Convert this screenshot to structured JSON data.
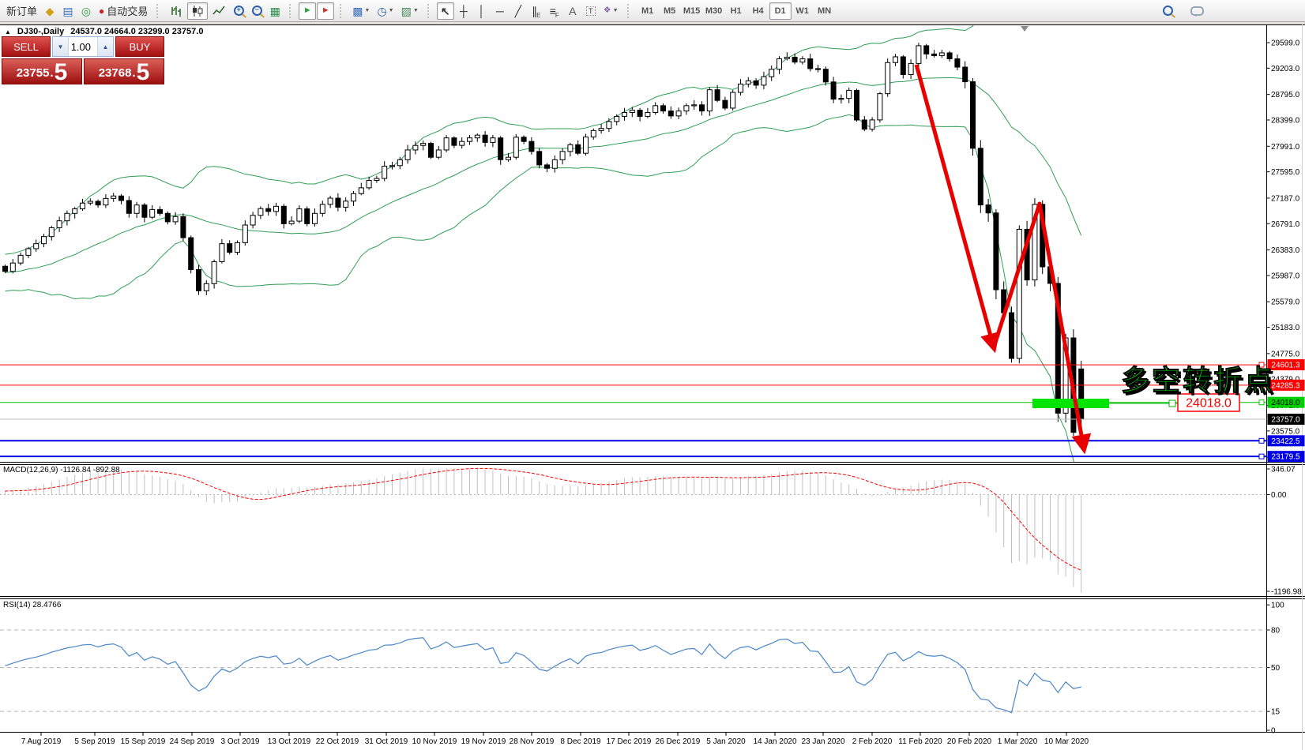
{
  "toolbar": {
    "new_order": "新订单",
    "auto_trading": "自动交易",
    "timeframes": [
      "M1",
      "M5",
      "M15",
      "M30",
      "H1",
      "H4",
      "D1",
      "W1",
      "MN"
    ],
    "active_timeframe": "D1"
  },
  "one_click": {
    "sell_label": "SELL",
    "buy_label": "BUY",
    "volume": "1.00",
    "sell_price": {
      "main": "23755",
      "dot": ".",
      "big": "5"
    },
    "buy_price": {
      "main": "23768",
      "dot": ".",
      "big": "5"
    }
  },
  "chart_header": {
    "symbol_period": "DJ30-,Daily",
    "ohlc_text": "24537.0 24664.0 23299.0 23757.0",
    "shift_marker": "triangle"
  },
  "indicator_labels": {
    "macd": {
      "name": "MACD(12,26,9)",
      "main_value": "-1126.84",
      "signal_value": "-892.88"
    },
    "rsi": {
      "name": "RSI(14)",
      "value": "28.4766"
    }
  },
  "annotations": {
    "turning_point_text": "多空转折点",
    "turning_point_color": "#00dd00",
    "price_callout": "24018.0",
    "callout_color": "#ff0000",
    "highlight_bar_color": "#00e400",
    "arrow_color": "#e60000"
  },
  "chart_data": {
    "type": "candlestick",
    "symbol": "DJ30-",
    "timeframe": "Daily",
    "last_candle_ohlc": {
      "open": 24537.0,
      "high": 24664.0,
      "low": 23299.0,
      "close": 23757.0
    },
    "closes": [
      26050,
      26180,
      26300,
      26403,
      26480,
      26590,
      26728,
      26835,
      26950,
      27020,
      27110,
      27137,
      27080,
      27182,
      27220,
      27150,
      26950,
      27080,
      26890,
      27010,
      26950,
      26820,
      26900,
      26573,
      26078,
      25750,
      25860,
      26201,
      26480,
      26346,
      26496,
      26770,
      26920,
      27024,
      26980,
      27060,
      26790,
      26830,
      27020,
      26790,
      26950,
      27090,
      27186,
      27046,
      27140,
      27257,
      27347,
      27462,
      27492,
      27681,
      27691,
      27783,
      27934,
      28004,
      28036,
      27821,
      27934,
      28121,
      28005,
      28066,
      28121,
      28164,
      28051,
      28121,
      27783,
      27821,
      28132,
      28066,
      27911,
      27702,
      27649,
      27782,
      27911,
      28015,
      27882,
      28135,
      28235,
      28268,
      28376,
      28455,
      28515,
      28551,
      28455,
      28515,
      28621,
      28538,
      28462,
      28538,
      28621,
      28634,
      28538,
      28868,
      28703,
      28583,
      28827,
      28957,
      29007,
      28939,
      29071,
      29186,
      29348,
      29373,
      29297,
      29348,
      29196,
      29186,
      28989,
      28722,
      28734,
      28859,
      28399,
      28256,
      28400,
      28807,
      29290,
      29379,
      29103,
      29276,
      29551,
      29423,
      29398,
      29440,
      29348,
      29219,
      28992,
      27960,
      27081,
      26957,
      25766,
      25409,
      24700,
      26703,
      25917,
      27090,
      26121,
      25864,
      23851,
      25018,
      23553,
      23757
    ],
    "price_ticks": [
      "29599.0",
      "29203.0",
      "28795.0",
      "28399.0",
      "27991.0",
      "27595.0",
      "27187.0",
      "26791.0",
      "26383.0",
      "25987.0",
      "25579.0",
      "25183.0",
      "24775.0",
      "24379.0",
      "23971.0",
      "23575.0",
      "23167.0"
    ],
    "date_labels": [
      [
        "7 Aug 2019",
        52
      ],
      [
        "5 Sep 2019",
        120
      ],
      [
        "15 Sep 2019",
        181
      ],
      [
        "24 Sep 2019",
        243
      ],
      [
        "3 Oct 2019",
        304
      ],
      [
        "13 Oct 2019",
        366
      ],
      [
        "22 Oct 2019",
        427
      ],
      [
        "31 Oct 2019",
        489
      ],
      [
        "10 Nov 2019",
        550
      ],
      [
        "19 Nov 2019",
        612
      ],
      [
        "28 Nov 2019",
        673
      ],
      [
        "8 Dec 2019",
        735
      ],
      [
        "17 Dec 2019",
        796
      ],
      [
        "26 Dec 2019",
        858
      ],
      [
        "5 Jan 2020",
        919
      ],
      [
        "14 Jan 2020",
        981
      ],
      [
        "23 Jan 2020",
        1042
      ],
      [
        "2 Feb 2020",
        1104
      ],
      [
        "11 Feb 2020",
        1165
      ],
      [
        "20 Feb 2020",
        1227
      ],
      [
        "1 Mar 2020",
        1288
      ],
      [
        "10 Mar 2020",
        1350
      ]
    ],
    "levels": [
      {
        "label": "24601.3",
        "price": 24601.3,
        "color": "#ff0000",
        "tag_bg": "#ff0000",
        "tag_text": "#ffffff",
        "width": 1
      },
      {
        "label": "24285.3",
        "price": 24285.3,
        "color": "#ff0000",
        "tag_bg": "#ff0000",
        "tag_text": "#ffffff",
        "width": 1
      },
      {
        "label": "24018.0",
        "price": 24018.0,
        "color": "#00c800",
        "tag_bg": "#00d000",
        "tag_text": "#000000",
        "width": 1
      },
      {
        "label": "23757.0",
        "price": 23757.0,
        "color": "#b8b8b8",
        "tag_bg": "#000000",
        "tag_text": "#ffffff",
        "width": 1,
        "current": true
      },
      {
        "label": "23422.5",
        "price": 23422.5,
        "color": "#0000e6",
        "tag_bg": "#0000e6",
        "tag_text": "#ffffff",
        "width": 2
      },
      {
        "label": "23179.5",
        "price": 23179.5,
        "color": "#0000e6",
        "tag_bg": "#0000e6",
        "tag_text": "#ffffff",
        "width": 2
      }
    ],
    "bollinger": {
      "period": 20,
      "deviations": 2,
      "color": "#2e9e52"
    },
    "macd": {
      "params": [
        12,
        26,
        9
      ],
      "axis_ticks": [
        "346.07",
        "0.00",
        "-1196.98"
      ],
      "histogram_color": "#c0c0c0",
      "signal_color": "#ff0000"
    },
    "rsi": {
      "period": 14,
      "axis_ticks": [
        "100",
        "80",
        "50",
        "15",
        "0"
      ],
      "guide_levels": [
        80,
        50,
        15
      ],
      "line_color": "#4a86c8"
    }
  }
}
